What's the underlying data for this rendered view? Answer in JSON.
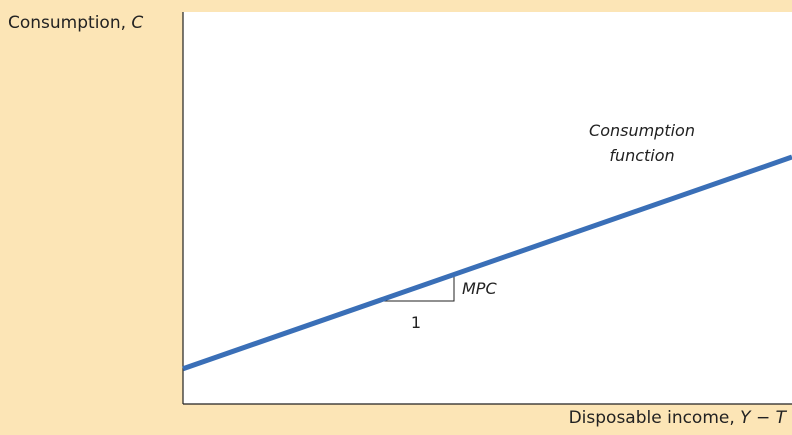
{
  "chart_data": {
    "type": "line",
    "title": "",
    "ylabel": {
      "text": "Consumption, ",
      "var": "C"
    },
    "xlabel": {
      "text": "Disposable income, ",
      "var": "Y − T"
    },
    "xlim": [
      0,
      10
    ],
    "ylim": [
      0,
      10
    ],
    "series": [
      {
        "x": [
          0,
          10
        ],
        "y": [
          0.9,
          6.3
        ],
        "color": "#3a6fb7"
      }
    ],
    "annotations": {
      "curve_label_line1": "Consumption",
      "curve_label_line2": "function",
      "slope_rise_label": "MPC",
      "slope_run_label": "1",
      "slope_triangle_x": [
        3.2,
        4.45
      ]
    },
    "grid": false,
    "ticks": false
  }
}
